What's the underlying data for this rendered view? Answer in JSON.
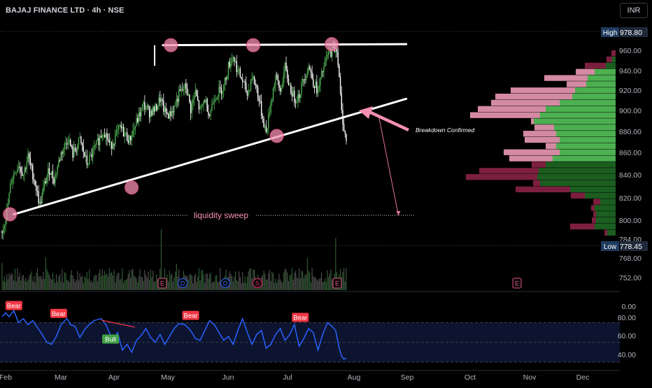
{
  "header": {
    "symbol": "BAJAJ FINANCE LTD · 4h · NSE",
    "currency_button": "INR"
  },
  "colors": {
    "up": "#4caf50",
    "down": "#ffffff",
    "rsi": "#2962ff",
    "marker": "#f48fb1",
    "bear": "#f23645",
    "bull": "#43a047",
    "vp_up_light": "#4caf50",
    "vp_up_dark": "#1b5e20",
    "vp_down_light": "#d48aa3",
    "vp_down_dark": "#7c1f3f"
  },
  "price_axis": {
    "ticks": [
      "960.00",
      "940.00",
      "920.00",
      "900.00",
      "880.00",
      "860.00",
      "840.00",
      "820.00",
      "800.00",
      "784.00",
      "768.00",
      "752.00"
    ],
    "high_label": "High",
    "high_value": "978.80",
    "low_label": "Low",
    "low_value": "778.45"
  },
  "rsi_axis": {
    "ticks": [
      "0.00",
      "80.00",
      "60.00",
      "40.00"
    ]
  },
  "time_axis": {
    "labels": [
      "Feb",
      "Mar",
      "Apr",
      "May",
      "Jun",
      "Jul",
      "Aug",
      "Sep",
      "Oct",
      "Nov",
      "Dec"
    ]
  },
  "annotations": {
    "liquidity": "liquidity sweep",
    "breakdown": "Breakdown Confirmed",
    "bear": "Bear",
    "bull": "Bull"
  },
  "events": [
    "E",
    "D",
    "D",
    "S",
    "E",
    "E"
  ],
  "chart_data": {
    "type": "candlestick",
    "title": "BAJAJ FINANCE LTD · 4h · NSE",
    "ylim": [
      744,
      984
    ],
    "high": 978.8,
    "low": 778.45,
    "anchors": [
      [
        0,
        790
      ],
      [
        4,
        808
      ],
      [
        8,
        840
      ],
      [
        14,
        855
      ],
      [
        18,
        845
      ],
      [
        22,
        862
      ],
      [
        28,
        836
      ],
      [
        32,
        815
      ],
      [
        36,
        835
      ],
      [
        40,
        850
      ],
      [
        44,
        840
      ],
      [
        50,
        865
      ],
      [
        56,
        880
      ],
      [
        60,
        864
      ],
      [
        66,
        878
      ],
      [
        72,
        855
      ],
      [
        78,
        868
      ],
      [
        86,
        888
      ],
      [
        92,
        872
      ],
      [
        100,
        890
      ],
      [
        108,
        878
      ],
      [
        115,
        898
      ],
      [
        120,
        912
      ],
      [
        125,
        905
      ],
      [
        130,
        908
      ],
      [
        134,
        918
      ],
      [
        138,
        905
      ],
      [
        142,
        902
      ],
      [
        146,
        910
      ],
      [
        150,
        922
      ],
      [
        156,
        930
      ],
      [
        160,
        908
      ],
      [
        164,
        924
      ],
      [
        168,
        905
      ],
      [
        172,
        918
      ],
      [
        176,
        903
      ],
      [
        180,
        920
      ],
      [
        184,
        925
      ],
      [
        188,
        930
      ],
      [
        192,
        950
      ],
      [
        196,
        960
      ],
      [
        200,
        945
      ],
      [
        204,
        935
      ],
      [
        208,
        922
      ],
      [
        212,
        940
      ],
      [
        216,
        928
      ],
      [
        220,
        905
      ],
      [
        224,
        885
      ],
      [
        228,
        915
      ],
      [
        232,
        940
      ],
      [
        236,
        925
      ],
      [
        240,
        948
      ],
      [
        244,
        930
      ],
      [
        248,
        918
      ],
      [
        252,
        922
      ],
      [
        256,
        938
      ],
      [
        260,
        950
      ],
      [
        264,
        935
      ],
      [
        268,
        925
      ],
      [
        272,
        945
      ],
      [
        276,
        960
      ],
      [
        280,
        965
      ],
      [
        284,
        968
      ],
      [
        288,
        905
      ],
      [
        290,
        890
      ],
      [
        292,
        876
      ]
    ],
    "trend_lines": [
      {
        "name": "resistance",
        "from": [
          41,
          970
        ],
        "to": [
          103,
          971
        ]
      },
      {
        "name": "support",
        "from": [
          3,
          806
        ],
        "to": [
          103,
          918
        ]
      }
    ],
    "touch_points": [
      [
        2,
        806
      ],
      [
        43,
        970
      ],
      [
        64,
        970
      ],
      [
        84,
        971
      ],
      [
        33,
        832
      ],
      [
        70,
        882
      ]
    ],
    "liquidity_level": 805,
    "projection": {
      "from": [
        96,
        901
      ],
      "to": [
        101,
        805
      ]
    },
    "volume_profile": [
      {
        "price": 962,
        "up": 0,
        "down": 6,
        "down_dark": true
      },
      {
        "price": 956,
        "up": 5,
        "down": 8,
        "down_dark": true
      },
      {
        "price": 950,
        "up": 14,
        "down": 30,
        "down_dark": true
      },
      {
        "price": 944,
        "up": 30,
        "down": 27,
        "down_dark": false
      },
      {
        "price": 938,
        "up": 40,
        "down": 62,
        "down_dark": false
      },
      {
        "price": 932,
        "up": 42,
        "down": 28,
        "down_dark": false
      },
      {
        "price": 926,
        "up": 58,
        "down": 92,
        "down_dark": false
      },
      {
        "price": 920,
        "up": 62,
        "down": 110,
        "down_dark": false
      },
      {
        "price": 914,
        "up": 80,
        "down": 98,
        "down_dark": false
      },
      {
        "price": 908,
        "up": 100,
        "down": 97,
        "down_dark": false
      },
      {
        "price": 902,
        "up": 108,
        "down": 100,
        "down_dark": false
      },
      {
        "price": 896,
        "up": 117,
        "down": 4,
        "down_dark": false
      },
      {
        "price": 890,
        "up": 88,
        "down": 28,
        "down_dark": false
      },
      {
        "price": 884,
        "up": 85,
        "down": 47,
        "down_dark": false
      },
      {
        "price": 878,
        "up": 80,
        "down": 50,
        "down_dark": false
      },
      {
        "price": 872,
        "up": 85,
        "down": 15,
        "down_dark": false
      },
      {
        "price": 866,
        "up": 80,
        "down": 80,
        "down_dark": false
      },
      {
        "price": 860,
        "up": 90,
        "down": 62,
        "down_dark": false
      },
      {
        "price": 854,
        "up": 100,
        "down": 20,
        "down_dark": true
      },
      {
        "price": 848,
        "up": 110,
        "down": 85,
        "down_dark": true
      },
      {
        "price": 842,
        "up": 112,
        "down": 102,
        "down_dark": true
      },
      {
        "price": 836,
        "up": 108,
        "down": 10,
        "down_dark": true
      },
      {
        "price": 830,
        "up": 65,
        "down": 78,
        "down_dark": true
      },
      {
        "price": 824,
        "up": 44,
        "down": 20,
        "down_dark": true
      },
      {
        "price": 818,
        "up": 22,
        "down": 10,
        "down_dark": true
      },
      {
        "price": 812,
        "up": 30,
        "down": 5,
        "down_dark": true
      },
      {
        "price": 806,
        "up": 28,
        "down": 4,
        "down_dark": true
      },
      {
        "price": 800,
        "up": 28,
        "down": 6,
        "down_dark": true
      },
      {
        "price": 794,
        "up": 30,
        "down": 35,
        "down_dark": true
      },
      {
        "price": 788,
        "up": 12,
        "down": 4,
        "down_dark": true
      }
    ],
    "rsi": {
      "ylim": [
        30,
        88
      ],
      "levels": [
        70,
        50,
        30
      ],
      "anchors": [
        [
          0,
          76
        ],
        [
          3,
          80
        ],
        [
          6,
          76
        ],
        [
          10,
          82
        ],
        [
          14,
          70
        ],
        [
          18,
          74
        ],
        [
          22,
          68
        ],
        [
          26,
          72
        ],
        [
          30,
          65
        ],
        [
          34,
          58
        ],
        [
          38,
          50
        ],
        [
          42,
          48
        ],
        [
          46,
          56
        ],
        [
          50,
          68
        ],
        [
          55,
          74
        ],
        [
          58,
          68
        ],
        [
          62,
          66
        ],
        [
          66,
          55
        ],
        [
          70,
          63
        ],
        [
          74,
          68
        ],
        [
          78,
          72
        ],
        [
          84,
          74
        ],
        [
          88,
          68
        ],
        [
          94,
          52
        ],
        [
          98,
          60
        ],
        [
          102,
          42
        ],
        [
          106,
          48
        ],
        [
          110,
          40
        ],
        [
          114,
          52
        ],
        [
          118,
          57
        ],
        [
          122,
          64
        ],
        [
          126,
          55
        ],
        [
          130,
          50
        ],
        [
          134,
          58
        ],
        [
          138,
          48
        ],
        [
          142,
          56
        ],
        [
          146,
          64
        ],
        [
          150,
          69
        ],
        [
          155,
          68
        ],
        [
          160,
          62
        ],
        [
          164,
          54
        ],
        [
          168,
          52
        ],
        [
          172,
          62
        ],
        [
          176,
          72
        ],
        [
          180,
          68
        ],
        [
          184,
          60
        ],
        [
          188,
          52
        ],
        [
          192,
          56
        ],
        [
          196,
          48
        ],
        [
          200,
          62
        ],
        [
          204,
          74
        ],
        [
          208,
          60
        ],
        [
          212,
          48
        ],
        [
          216,
          58
        ],
        [
          220,
          62
        ],
        [
          224,
          44
        ],
        [
          228,
          48
        ],
        [
          232,
          58
        ],
        [
          236,
          64
        ],
        [
          240,
          52
        ],
        [
          244,
          58
        ],
        [
          248,
          68
        ],
        [
          252,
          46
        ],
        [
          256,
          54
        ],
        [
          260,
          64
        ],
        [
          264,
          60
        ],
        [
          268,
          42
        ],
        [
          272,
          58
        ],
        [
          276,
          70
        ],
        [
          280,
          66
        ],
        [
          283,
          62
        ],
        [
          286,
          44
        ],
        [
          288,
          36
        ],
        [
          290,
          33
        ],
        [
          292,
          34
        ]
      ],
      "tags": [
        {
          "label": "Bear",
          "i": 10,
          "v": 82,
          "kind": "bear"
        },
        {
          "label": "Bear",
          "i": 48,
          "v": 74,
          "kind": "bear"
        },
        {
          "label": "Bull",
          "i": 92,
          "v": 48,
          "kind": "bull"
        },
        {
          "label": "Bear",
          "i": 160,
          "v": 72,
          "kind": "bear"
        },
        {
          "label": "Bear",
          "i": 253,
          "v": 70,
          "kind": "bear"
        }
      ]
    }
  }
}
